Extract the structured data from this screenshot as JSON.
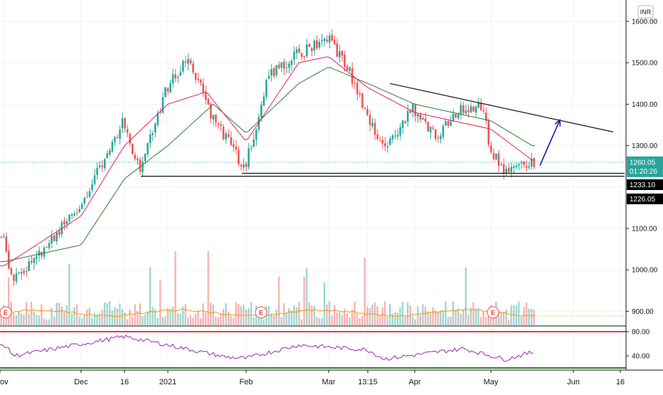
{
  "currency": "INR",
  "colors": {
    "up": "#26a69a",
    "down": "#ef5350",
    "ema_fast": "#e91e63",
    "ema_slow": "#2e7d32",
    "volume_ma": "#ff9800",
    "rsi": "#9c27b0",
    "rsi_upper_line": "#e53935",
    "rsi_lower_line": "#2e7d32",
    "trendline": "#131722",
    "arrow": "#1a1aa6",
    "grid": "#f0f3fa"
  },
  "price_axis": {
    "labels": [
      "1600.00",
      "1500.00",
      "1400.00",
      "1300.00",
      "1100.00",
      "1000.00",
      "900.00"
    ]
  },
  "rsi_axis": {
    "labels": [
      "80.00",
      "40.00"
    ]
  },
  "time_axis": {
    "labels": [
      "ov",
      "Dec",
      "16",
      "2021",
      "Feb",
      "Mar",
      "13:15",
      "Apr",
      "May",
      "Jun",
      "16"
    ]
  },
  "badges": {
    "last_price": "1260.05",
    "countdown": "01:20:26",
    "support_upper": "1233.10",
    "support_lower": "1226.05"
  },
  "earnings_marker": "E",
  "chart_data": {
    "type": "candlestick",
    "title": "",
    "xlabel": "",
    "ylabel": "",
    "ylim": [
      850,
      1620
    ],
    "x_labels": [
      "Nov",
      "Dec",
      "16",
      "2021",
      "Feb",
      "Mar",
      "13:15",
      "Apr",
      "May",
      "Jun",
      "16"
    ],
    "last_price": 1260.05,
    "horizontal_lines": [
      1233.1,
      1226.05
    ],
    "descending_trendline": {
      "from": [
        "2021-03-18",
        1450
      ],
      "to": [
        "2021-06-16",
        1333
      ]
    },
    "projection_arrow": {
      "from": [
        "2021-05-10",
        1252
      ],
      "to": [
        "2021-05-21",
        1362
      ]
    },
    "earnings_dates": [
      "Nov",
      "Feb",
      "May"
    ],
    "price_anchors": [
      {
        "date": "Nov",
        "price": 1080
      },
      {
        "date": "Nov",
        "price": 970
      },
      {
        "date": "Dec",
        "price": 1150
      },
      {
        "date": "Dec 16",
        "price": 1360
      },
      {
        "date": "Dec 21",
        "price": 1240
      },
      {
        "date": "2021",
        "price": 1440
      },
      {
        "date": "Jan 10",
        "price": 1510
      },
      {
        "date": "Jan 20",
        "price": 1370
      },
      {
        "date": "Feb",
        "price": 1245
      },
      {
        "date": "Feb 10",
        "price": 1470
      },
      {
        "date": "Feb 20",
        "price": 1520
      },
      {
        "date": "Mar",
        "price": 1560
      },
      {
        "date": "Mar 10",
        "price": 1490
      },
      {
        "date": "Mar 15",
        "price": 1380
      },
      {
        "date": "Mar 18",
        "price": 1290
      },
      {
        "date": "Apr",
        "price": 1390
      },
      {
        "date": "Apr 10",
        "price": 1320
      },
      {
        "date": "Apr 20",
        "price": 1390
      },
      {
        "date": "Apr 28",
        "price": 1395
      },
      {
        "date": "May",
        "price": 1300
      },
      {
        "date": "May 5",
        "price": 1230
      },
      {
        "date": "May 10",
        "price": 1260
      }
    ],
    "ema_fast_anchors": [
      {
        "date": "Nov",
        "price": 1010
      },
      {
        "date": "Dec",
        "price": 1130
      },
      {
        "date": "Dec 16",
        "price": 1300
      },
      {
        "date": "2021",
        "price": 1400
      },
      {
        "date": "Jan 15",
        "price": 1430
      },
      {
        "date": "Feb",
        "price": 1310
      },
      {
        "date": "Feb 20",
        "price": 1500
      },
      {
        "date": "Mar",
        "price": 1515
      },
      {
        "date": "Mar 15",
        "price": 1440
      },
      {
        "date": "Apr",
        "price": 1380
      },
      {
        "date": "May",
        "price": 1340
      },
      {
        "date": "May 10",
        "price": 1265
      }
    ],
    "ema_slow_anchors": [
      {
        "date": "Nov",
        "price": 1020
      },
      {
        "date": "Dec",
        "price": 1060
      },
      {
        "date": "Dec 16",
        "price": 1220
      },
      {
        "date": "2021",
        "price": 1300
      },
      {
        "date": "Jan 20",
        "price": 1400
      },
      {
        "date": "Feb",
        "price": 1330
      },
      {
        "date": "Feb 20",
        "price": 1450
      },
      {
        "date": "Mar",
        "price": 1490
      },
      {
        "date": "Mar 15",
        "price": 1450
      },
      {
        "date": "Apr",
        "price": 1400
      },
      {
        "date": "May",
        "price": 1360
      },
      {
        "date": "May 10",
        "price": 1300
      }
    ],
    "rsi": {
      "levels": [
        80,
        40
      ],
      "last": 46,
      "anchors": [
        {
          "date": "Nov",
          "value": 58
        },
        {
          "date": "Nov",
          "value": 40
        },
        {
          "date": "Dec 16",
          "value": 72
        },
        {
          "date": "2021",
          "value": 58
        },
        {
          "date": "Jan 25",
          "value": 38
        },
        {
          "date": "Feb",
          "value": 36
        },
        {
          "date": "Feb 20",
          "value": 58
        },
        {
          "date": "Mar 15",
          "value": 50
        },
        {
          "date": "Mar 18",
          "value": 35
        },
        {
          "date": "Apr 20",
          "value": 52
        },
        {
          "date": "May 5",
          "value": 34
        },
        {
          "date": "May 10",
          "value": 46
        }
      ]
    }
  }
}
